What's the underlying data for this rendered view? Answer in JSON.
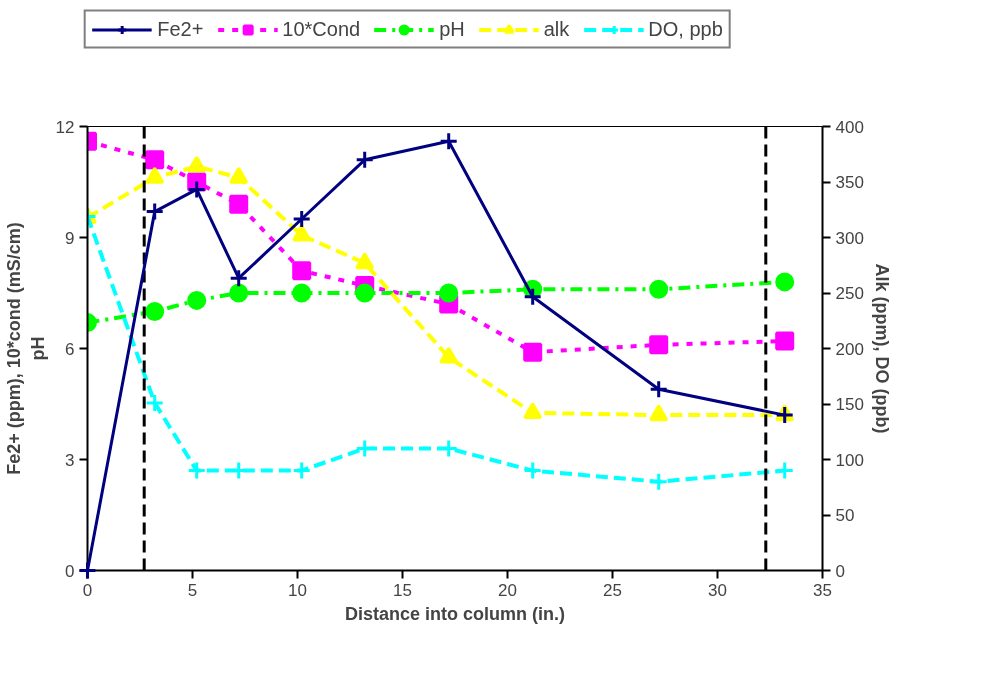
{
  "chart_data": {
    "type": "line",
    "xlabel": "Distance into column (in.)",
    "ylabel": "Fe2+ (ppm), 10*cond (mS/cm)\npH",
    "y2label": "Alk (ppm), DO (ppb)",
    "x": [
      0,
      3.2,
      5.2,
      7.2,
      10.2,
      13.2,
      17.2,
      21.2,
      27.2,
      33.2
    ],
    "xlim": [
      0,
      35
    ],
    "xticks": [
      0,
      5,
      10,
      15,
      20,
      25,
      30,
      35
    ],
    "ylim": [
      0,
      12
    ],
    "yticks": [
      0,
      3,
      6,
      9,
      12
    ],
    "y2lim": [
      0,
      400
    ],
    "y2ticks": [
      0,
      50,
      100,
      150,
      200,
      250,
      300,
      350,
      400
    ],
    "grid": false,
    "legend": "top",
    "series": [
      {
        "name": "Fe2+",
        "color": "#000080",
        "marker": "cross",
        "line_style": "solid",
        "values": [
          0,
          9.7,
          10.3,
          7.9,
          9.5,
          11.1,
          11.6,
          7.4,
          4.9,
          4.2
        ]
      },
      {
        "name": "10*Cond",
        "color": "#ff00ff",
        "marker": "square",
        "line_style": "dotted",
        "values": [
          11.6,
          11.1,
          10.5,
          9.9,
          8.1,
          7.7,
          7.2,
          5.9,
          6.1,
          6.2
        ]
      },
      {
        "name": "pH",
        "color": "#00ff00",
        "marker": "circle",
        "line_style": "dashdot",
        "values": [
          6.7,
          7.0,
          7.3,
          7.5,
          7.5,
          7.5,
          7.5,
          7.6,
          7.6,
          7.8
        ]
      },
      {
        "name": "alk",
        "color": "#ffff00",
        "marker": "triangle",
        "line_style": "dashed",
        "axis": "y2",
        "values": [
          318,
          354,
          364,
          354,
          302,
          277,
          192,
          142,
          140,
          140
        ]
      },
      {
        "name": "DO, ppb",
        "color": "#00ffff",
        "marker": "cross",
        "line_style": "dashed",
        "axis": "y2",
        "values": [
          319,
          151,
          90,
          90,
          90,
          110,
          110,
          90,
          80,
          90
        ]
      }
    ],
    "ref_lines": [
      {
        "axis": "x",
        "value": 2.7,
        "color": "#000000",
        "line_style": "dashed"
      },
      {
        "axis": "x",
        "value": 32.3,
        "color": "#000000",
        "line_style": "dashed"
      }
    ]
  }
}
